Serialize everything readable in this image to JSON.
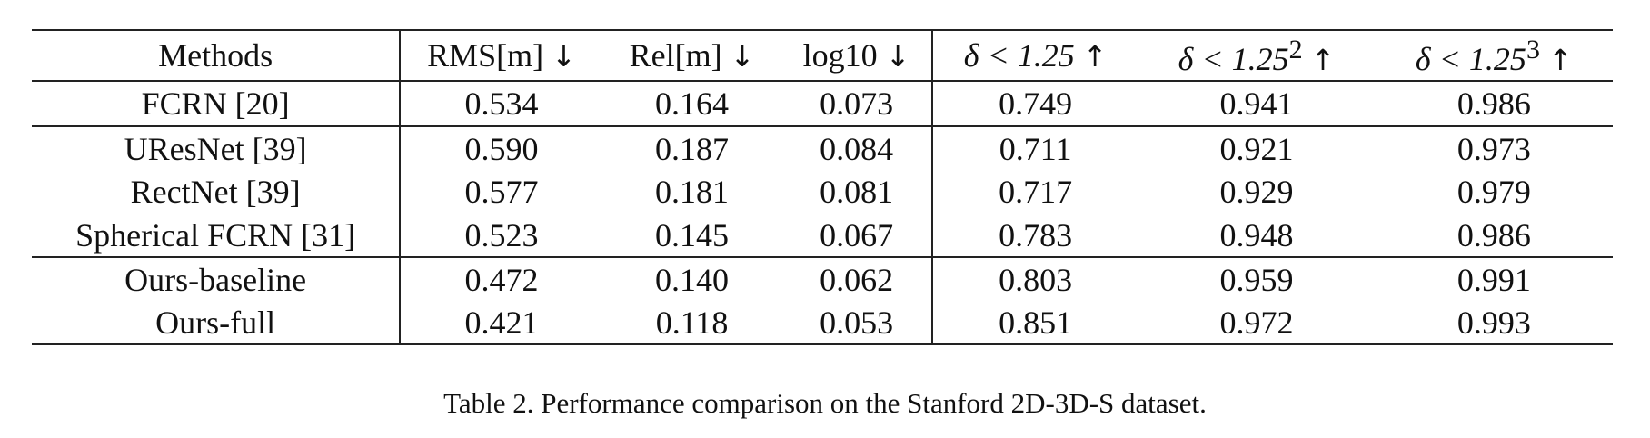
{
  "table": {
    "headers": {
      "method": "Methods",
      "rms": "RMS[m]",
      "rms_arrow": "↓",
      "rel": "Rel[m]",
      "rel_arrow": "↓",
      "log10": "log10",
      "log10_arrow": "↓",
      "d1": "δ < 1.25",
      "d1_arrow": "↑",
      "d2_base": "δ < 1.25",
      "d2_exp": "2",
      "d2_arrow": "↑",
      "d3_base": "δ < 1.25",
      "d3_exp": "3",
      "d3_arrow": "↑"
    },
    "rows": [
      {
        "method": "FCRN [20]",
        "rms": "0.534",
        "rel": "0.164",
        "log10": "0.073",
        "d1": "0.749",
        "d2": "0.941",
        "d3": "0.986"
      },
      {
        "method": "UResNet [39]",
        "rms": "0.590",
        "rel": "0.187",
        "log10": "0.084",
        "d1": "0.711",
        "d2": "0.921",
        "d3": "0.973"
      },
      {
        "method": "RectNet [39]",
        "rms": "0.577",
        "rel": "0.181",
        "log10": "0.081",
        "d1": "0.717",
        "d2": "0.929",
        "d3": "0.979"
      },
      {
        "method": "Spherical FCRN [31]",
        "rms": "0.523",
        "rel": "0.145",
        "log10": "0.067",
        "d1": "0.783",
        "d2": "0.948",
        "d3": "0.986"
      },
      {
        "method": "Ours-baseline",
        "rms": "0.472",
        "rel": "0.140",
        "log10": "0.062",
        "d1": "0.803",
        "d2": "0.959",
        "d3": "0.991"
      },
      {
        "method": "Ours-full",
        "rms": "0.421",
        "rel": "0.118",
        "log10": "0.053",
        "d1": "0.851",
        "d2": "0.972",
        "d3": "0.993"
      }
    ]
  },
  "caption": "Table 2. Performance comparison on the Stanford 2D-3D-S dataset."
}
